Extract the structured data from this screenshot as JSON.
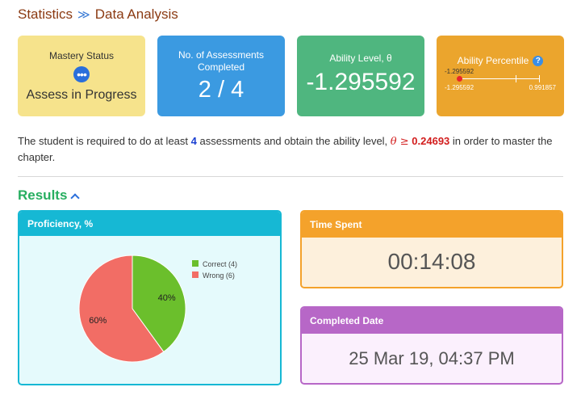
{
  "breadcrumb": {
    "parent": "Statistics",
    "separator": "≫",
    "current": "Data Analysis"
  },
  "cards": {
    "mastery": {
      "title": "Mastery Status",
      "icon": "more-dots-icon",
      "status": "Assess in Progress"
    },
    "assessments": {
      "title": "No. of Assessments Completed",
      "value": "2 / 4"
    },
    "ability": {
      "title": "Ability Level, θ",
      "value": "-1.295592"
    },
    "percentile": {
      "title": "Ability Percentile",
      "help_icon": "?",
      "marker_value": "-1.295592",
      "range_min": "-1.295592",
      "range_max": "0.991857"
    }
  },
  "description": {
    "part1": "The student is required to do at least ",
    "count": "4",
    "part2": " assessments and obtain the ability level, ",
    "theta": "θ ≥",
    "threshold": "0.24693",
    "part3": " in order to master the chapter."
  },
  "results": {
    "title": "Results"
  },
  "proficiency": {
    "title": "Proficiency, %",
    "legend": [
      {
        "label": "Correct (4)",
        "color": "#6bbf2c"
      },
      {
        "label": "Wrong (6)",
        "color": "#f26d65"
      }
    ]
  },
  "chart_data": {
    "type": "pie",
    "categories": [
      "Correct (4)",
      "Wrong (6)"
    ],
    "values": [
      40,
      60
    ],
    "labels": [
      "40%",
      "60%"
    ],
    "colors": [
      "#6bbf2c",
      "#f26d65"
    ],
    "legend_position": "top-right"
  },
  "time_spent": {
    "title": "Time Spent",
    "value": "00:14:08"
  },
  "completed_date": {
    "title": "Completed Date",
    "value": "25 Mar 19, 04:37 PM"
  }
}
